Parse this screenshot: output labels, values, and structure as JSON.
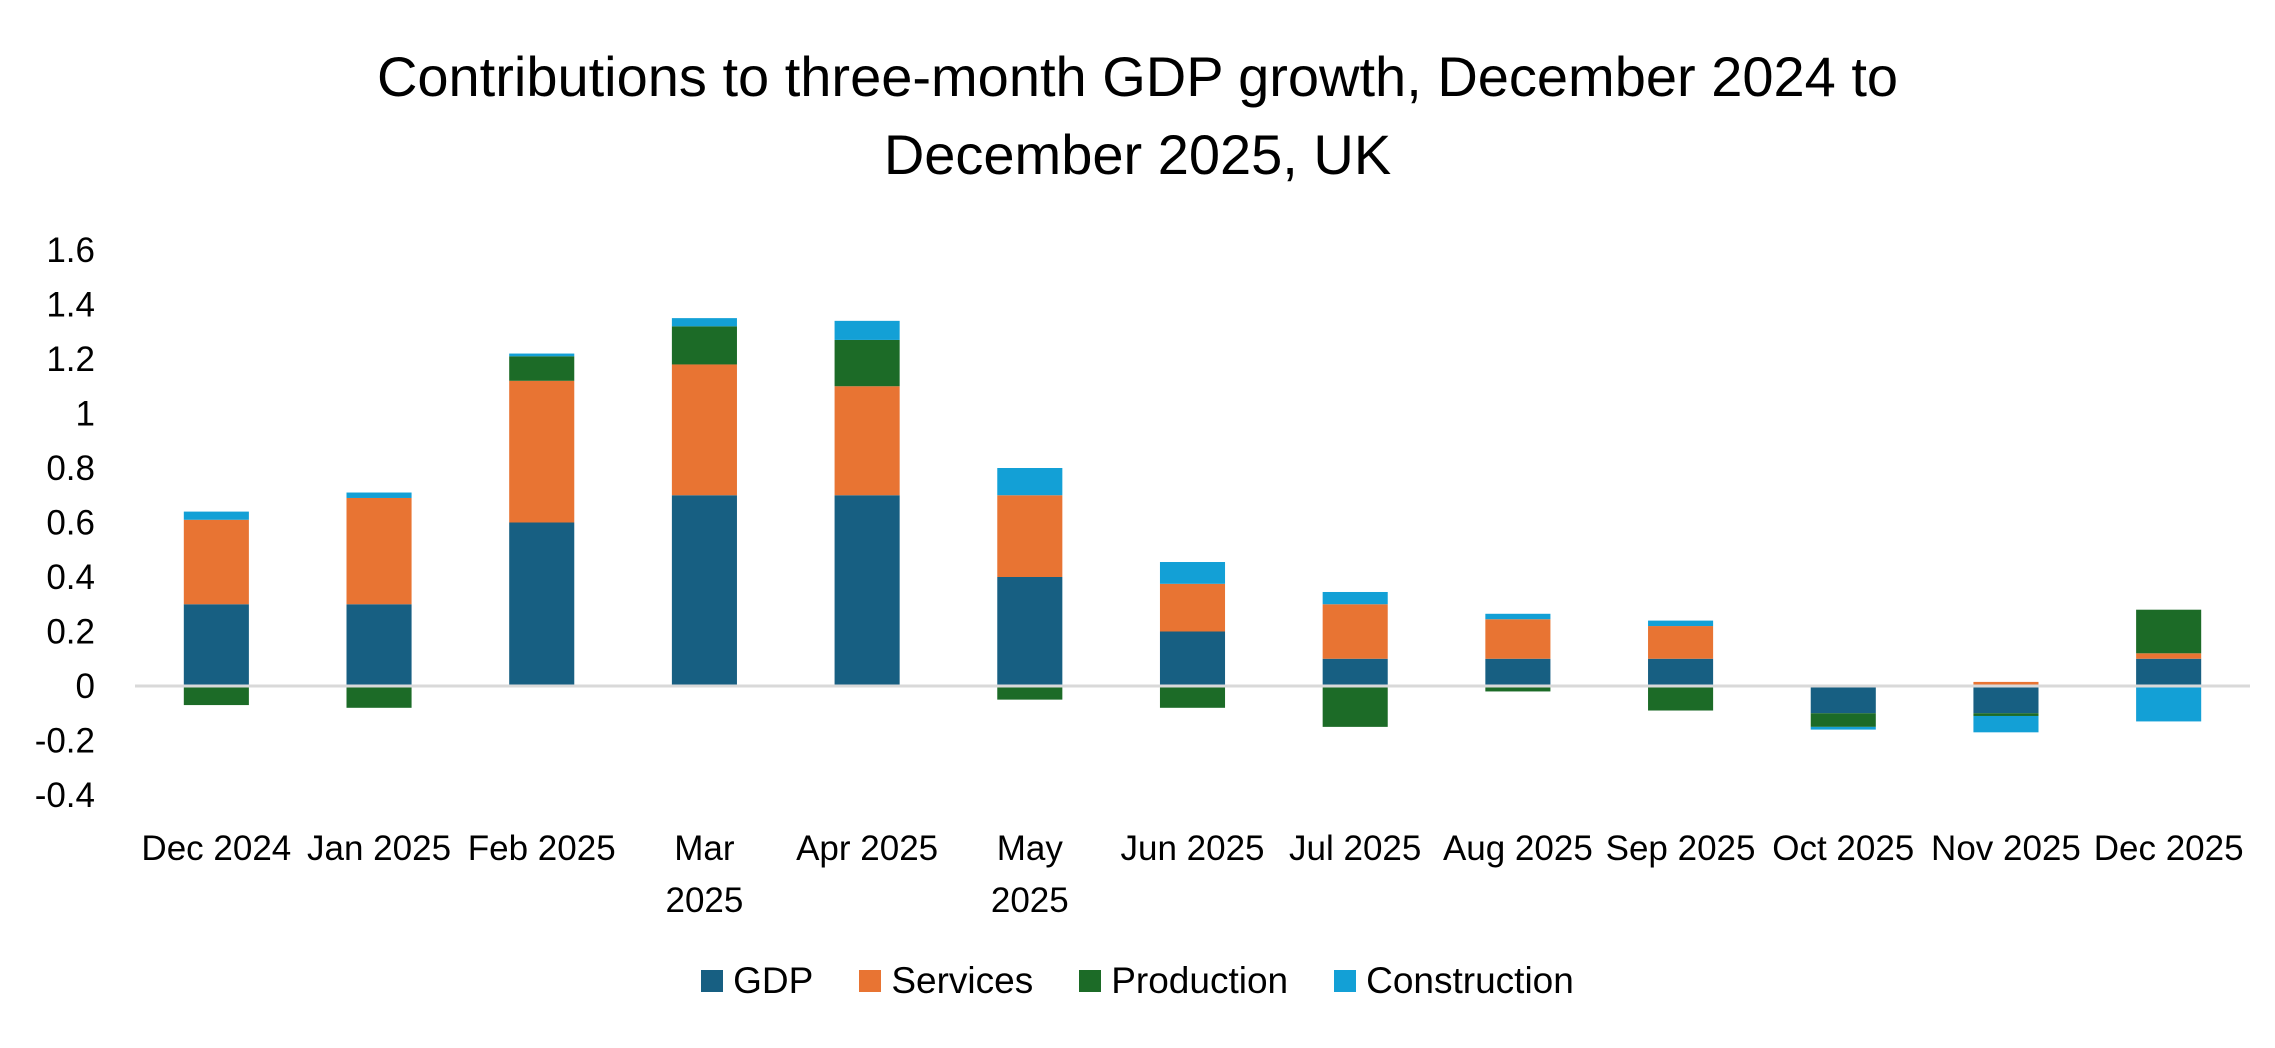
{
  "chart_data": {
    "type": "bar",
    "stacked": true,
    "title": "Contributions to three-month GDP growth, December 2024 to December 2025, UK",
    "title_lines": [
      "Contributions to three-month GDP growth, December 2024 to",
      "December 2025, UK"
    ],
    "xlabel": "",
    "ylabel": "",
    "ylim": [
      -0.4,
      1.6
    ],
    "yticks": [
      1.6,
      1.4,
      1.2,
      1,
      0.8,
      0.6,
      0.4,
      0.2,
      0,
      -0.2,
      -0.4
    ],
    "ytick_labels": [
      "1.6",
      "1.4",
      "1.2",
      "1",
      "0.8",
      "0.6",
      "0.4",
      "0.2",
      "0",
      "-0.2",
      "-0.4"
    ],
    "grid": false,
    "legend_position": "bottom",
    "categories": [
      "Dec 2024",
      "Jan 2025",
      "Feb 2025",
      "Mar 2025",
      "Apr 2025",
      "May 2025",
      "Jun 2025",
      "Jul 2025",
      "Aug 2025",
      "Sep 2025",
      "Oct 2025",
      "Nov 2025",
      "Dec 2025"
    ],
    "category_label_lines": [
      [
        "Dec 2024"
      ],
      [
        "Jan 2025"
      ],
      [
        "Feb 2025"
      ],
      [
        "Mar",
        "2025"
      ],
      [
        "Apr 2025"
      ],
      [
        "May",
        "2025"
      ],
      [
        "Jun 2025"
      ],
      [
        "Jul 2025"
      ],
      [
        "Aug 2025"
      ],
      [
        "Sep 2025"
      ],
      [
        "Oct 2025"
      ],
      [
        "Nov 2025"
      ],
      [
        "Dec 2025"
      ]
    ],
    "series": [
      {
        "name": "GDP",
        "color": "#175F82",
        "values": [
          0.3,
          0.3,
          0.6,
          0.7,
          0.7,
          0.4,
          0.2,
          0.1,
          0.1,
          0.1,
          -0.1,
          -0.1,
          0.1
        ]
      },
      {
        "name": "Services",
        "color": "#E87433",
        "values": [
          0.31,
          0.39,
          0.52,
          0.48,
          0.4,
          0.3,
          0.175,
          0.2,
          0.145,
          0.12,
          0.0,
          0.015,
          0.02
        ]
      },
      {
        "name": "Production",
        "color": "#1C6B27",
        "values": [
          -0.07,
          -0.08,
          0.09,
          0.14,
          0.17,
          -0.05,
          -0.08,
          -0.15,
          -0.02,
          -0.09,
          -0.05,
          -0.01,
          0.16
        ]
      },
      {
        "name": "Construction",
        "color": "#13A0D6",
        "values": [
          0.03,
          0.02,
          0.01,
          0.03,
          0.07,
          0.1,
          0.08,
          0.045,
          0.02,
          0.02,
          -0.01,
          -0.06,
          -0.13
        ]
      }
    ]
  }
}
